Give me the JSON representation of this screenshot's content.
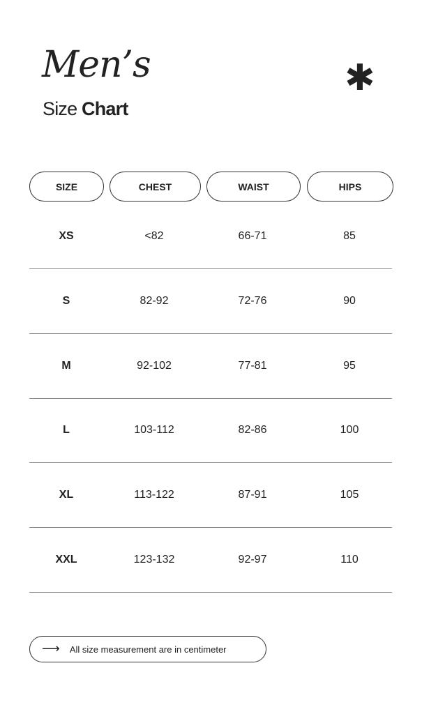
{
  "header": {
    "title": "Men’s",
    "subtitle_light": "Size",
    "subtitle_bold": "Chart",
    "decoration": "asterisk-icon"
  },
  "table": {
    "columns": [
      "SIZE",
      "CHEST",
      "WAIST",
      "HIPS"
    ],
    "rows": [
      [
        "XS",
        "<82",
        "66-71",
        "85"
      ],
      [
        "S",
        "82-92",
        "72-76",
        "90"
      ],
      [
        "M",
        "92-102",
        "77-81",
        "95"
      ],
      [
        "L",
        "103-112",
        "82-86",
        "100"
      ],
      [
        "XL",
        "113-122",
        "87-91",
        "105"
      ],
      [
        "XXL",
        "123-132",
        "92-97",
        "110"
      ]
    ]
  },
  "footer": {
    "icon": "arrow-right-icon",
    "text": "All size measurement are in centimeter"
  }
}
